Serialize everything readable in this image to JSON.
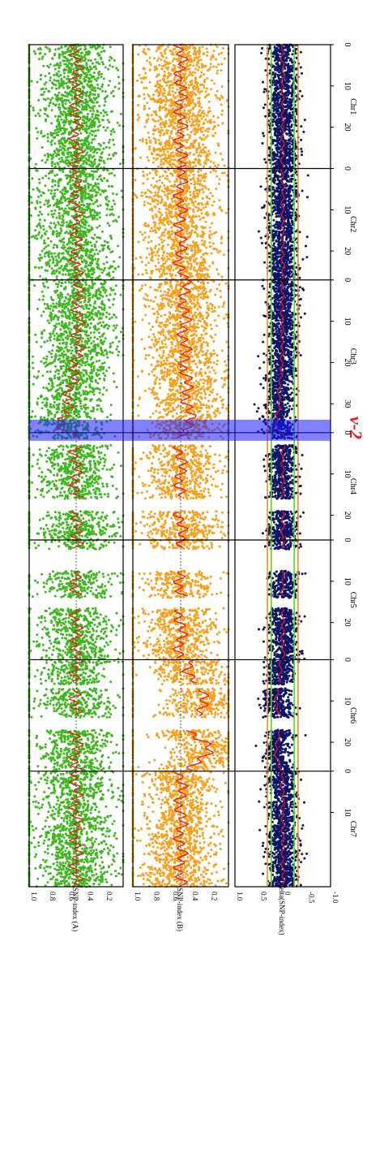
{
  "chart_data": {
    "type": "scatter",
    "orientation": "rotated-90",
    "title": "",
    "chromosomes": [
      {
        "name": "Chr1",
        "length": 30,
        "ticks": [
          0,
          10,
          20
        ]
      },
      {
        "name": "Chr2",
        "length": 27,
        "ticks": [
          0,
          10,
          20
        ]
      },
      {
        "name": "Chr3",
        "length": 37,
        "ticks": [
          0,
          10,
          20,
          30
        ]
      },
      {
        "name": "Chr4",
        "length": 26,
        "ticks": [
          0,
          10,
          20
        ]
      },
      {
        "name": "Chr5",
        "length": 29,
        "ticks": [
          0,
          10,
          20
        ]
      },
      {
        "name": "Chr6",
        "length": 27,
        "ticks": [
          0,
          10,
          20
        ]
      },
      {
        "name": "Chr7",
        "length": 28,
        "ticks": [
          0,
          10
        ]
      }
    ],
    "panels": [
      {
        "id": "A",
        "ylabel": "SNP-index (A)",
        "ylim": [
          0.0,
          1.0
        ],
        "ticks": [
          "1.0",
          "0.8",
          "0.6",
          "0.4",
          "0.2"
        ],
        "threshold": 0.5,
        "color": "#3cb81c"
      },
      {
        "id": "B",
        "ylabel": "SNP-index (B)",
        "ylim": [
          0.0,
          1.0
        ],
        "ticks": [
          "1.0",
          "0.8",
          "0.6",
          "0.4",
          "0.2"
        ],
        "threshold": 0.5,
        "color": "#f8a01c"
      },
      {
        "id": "delta",
        "ylabel": "delta(SNP-index)",
        "ylim": [
          -1.0,
          1.0
        ],
        "ticks": [
          "-1.0",
          "-0.5",
          "0",
          "0.5",
          "1.0"
        ],
        "color": "#0c1468",
        "ci_colors": [
          "#f39412",
          "#5ed424"
        ]
      }
    ],
    "fit_line_color": "#e8181c",
    "annotation": {
      "label": "v-2",
      "chromosome": "Chr4",
      "position": 0,
      "color": "#1a1aff"
    }
  }
}
